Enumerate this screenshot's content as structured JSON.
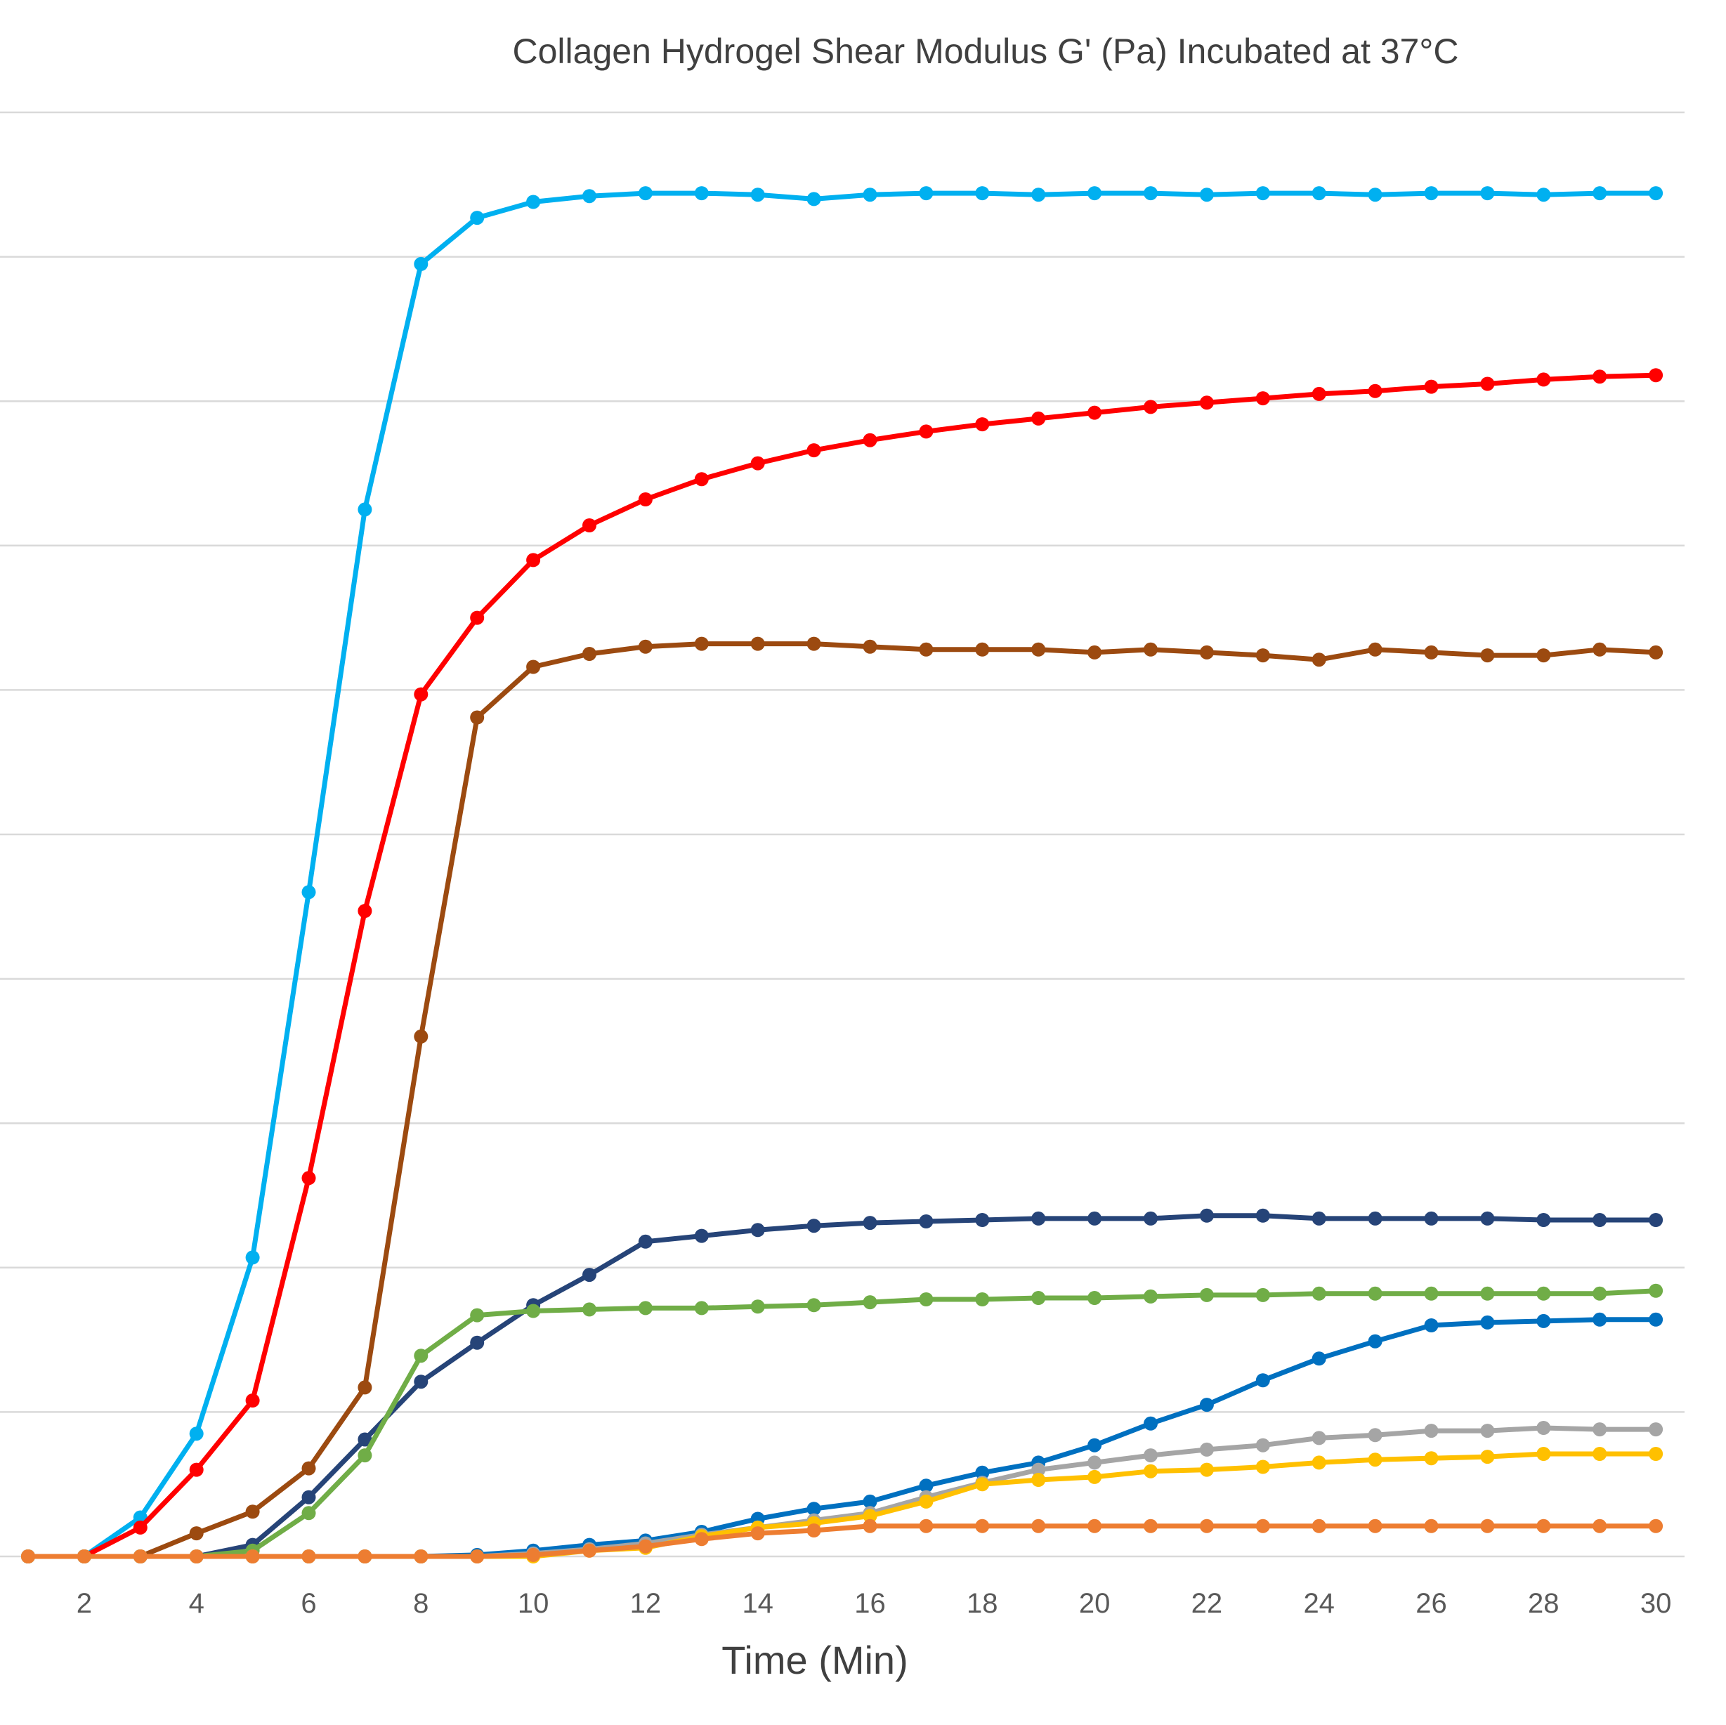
{
  "chart_data": {
    "type": "line",
    "title": "Collagen Hydrogel Shear Modulus G' (Pa) Incubated at 37°C",
    "xlabel": "Time (Min)",
    "ylabel": "",
    "x": [
      1,
      2,
      3,
      4,
      5,
      6,
      7,
      8,
      9,
      10,
      11,
      12,
      13,
      14,
      15,
      16,
      17,
      18,
      19,
      20,
      21,
      22,
      23,
      24,
      25,
      26,
      27,
      28,
      29,
      30
    ],
    "x_tick_labels": [
      "2",
      "4",
      "6",
      "8",
      "10",
      "12",
      "14",
      "16",
      "18",
      "20",
      "22",
      "24",
      "26",
      "28",
      "30"
    ],
    "xlim": [
      1,
      30
    ],
    "ylim": [
      0,
      10
    ],
    "y_gridlines": [
      0,
      1,
      2,
      3,
      4,
      5,
      6,
      7,
      8,
      9,
      10
    ],
    "grid": true,
    "legend": false,
    "series": [
      {
        "color": "#00b0f0",
        "values": [
          0,
          0,
          0.27,
          0.85,
          2.07,
          4.6,
          7.25,
          8.95,
          9.27,
          9.38,
          9.42,
          9.44,
          9.44,
          9.43,
          9.4,
          9.43,
          9.44,
          9.44,
          9.43,
          9.44,
          9.44,
          9.43,
          9.44,
          9.44,
          9.43,
          9.44,
          9.44,
          9.43,
          9.44,
          9.44
        ]
      },
      {
        "color": "#ff0000",
        "values": [
          0,
          0,
          0.2,
          0.6,
          1.08,
          2.62,
          4.47,
          5.97,
          6.5,
          6.9,
          7.14,
          7.32,
          7.46,
          7.57,
          7.66,
          7.73,
          7.79,
          7.84,
          7.88,
          7.92,
          7.96,
          7.99,
          8.02,
          8.05,
          8.07,
          8.1,
          8.12,
          8.15,
          8.17,
          8.18
        ]
      },
      {
        "color": "#9c4a10",
        "values": [
          0,
          0,
          0,
          0.16,
          0.31,
          0.61,
          1.17,
          3.6,
          5.81,
          6.16,
          6.25,
          6.3,
          6.32,
          6.32,
          6.32,
          6.3,
          6.28,
          6.28,
          6.28,
          6.26,
          6.28,
          6.26,
          6.24,
          6.21,
          6.28,
          6.26,
          6.24,
          6.24,
          6.28,
          6.26
        ]
      },
      {
        "color": "#264478",
        "values": [
          0,
          0,
          0,
          0,
          0.08,
          0.41,
          0.81,
          1.21,
          1.48,
          1.74,
          1.95,
          2.18,
          2.22,
          2.26,
          2.29,
          2.31,
          2.32,
          2.33,
          2.34,
          2.34,
          2.34,
          2.36,
          2.36,
          2.34,
          2.34,
          2.34,
          2.34,
          2.33,
          2.33,
          2.33
        ]
      },
      {
        "color": "#70ad47",
        "values": [
          0,
          0,
          0,
          0,
          0.04,
          0.3,
          0.7,
          1.39,
          1.67,
          1.7,
          1.71,
          1.72,
          1.72,
          1.73,
          1.74,
          1.76,
          1.78,
          1.78,
          1.79,
          1.79,
          1.8,
          1.81,
          1.81,
          1.82,
          1.82,
          1.82,
          1.82,
          1.82,
          1.82,
          1.84
        ]
      },
      {
        "color": "#0070c0",
        "values": [
          0,
          0,
          0,
          0,
          0,
          0,
          0,
          0,
          0.01,
          0.04,
          0.08,
          0.11,
          0.17,
          0.26,
          0.33,
          0.38,
          0.49,
          0.58,
          0.65,
          0.77,
          0.92,
          1.05,
          1.22,
          1.37,
          1.49,
          1.6,
          1.62,
          1.63,
          1.64,
          1.64
        ]
      },
      {
        "color": "#a5a5a5",
        "values": [
          0,
          0,
          0,
          0,
          0,
          0,
          0,
          0,
          0,
          0.02,
          0.05,
          0.09,
          0.15,
          0.2,
          0.25,
          0.3,
          0.41,
          0.51,
          0.6,
          0.65,
          0.7,
          0.74,
          0.77,
          0.82,
          0.84,
          0.87,
          0.87,
          0.89,
          0.88,
          0.88
        ]
      },
      {
        "color": "#ffc000",
        "values": [
          0,
          0,
          0,
          0,
          0,
          0,
          0,
          0,
          0,
          0,
          0.04,
          0.06,
          0.14,
          0.2,
          0.23,
          0.28,
          0.38,
          0.5,
          0.53,
          0.55,
          0.59,
          0.6,
          0.62,
          0.65,
          0.67,
          0.68,
          0.69,
          0.71,
          0.71,
          0.71
        ]
      },
      {
        "color": "#ed7d31",
        "values": [
          0,
          0,
          0,
          0,
          0,
          0,
          0,
          0,
          0,
          0.01,
          0.04,
          0.07,
          0.12,
          0.16,
          0.18,
          0.21,
          0.21,
          0.21,
          0.21,
          0.21,
          0.21,
          0.21,
          0.21,
          0.21,
          0.21,
          0.21,
          0.21,
          0.21,
          0.21,
          0.21
        ]
      }
    ]
  }
}
